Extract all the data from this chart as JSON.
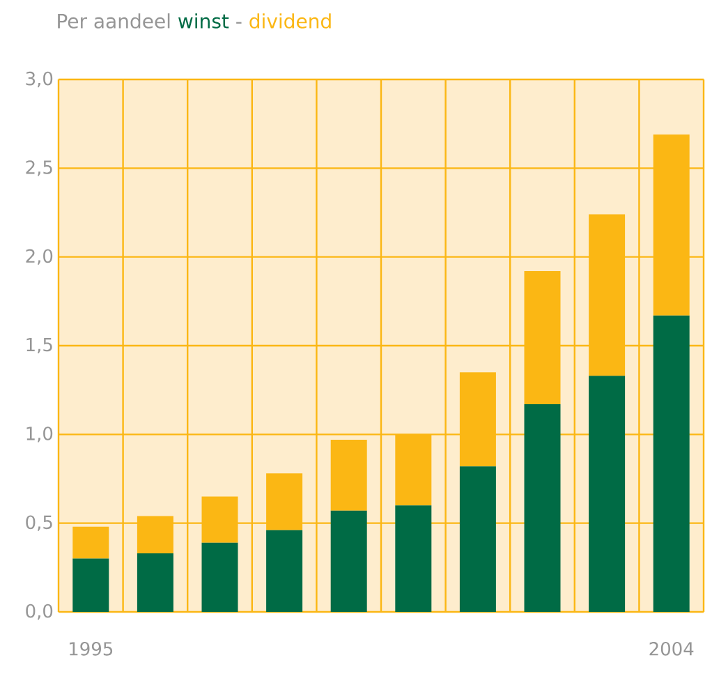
{
  "chart_data": {
    "type": "bar",
    "stacked": true,
    "title": "Per aandeel",
    "annotations": [
      "-"
    ],
    "categories": [
      "1995",
      null,
      null,
      null,
      null,
      null,
      null,
      null,
      null,
      "2004"
    ],
    "series": [
      {
        "name": "winst",
        "color": "#006b45",
        "values": [
          0.3,
          0.33,
          0.39,
          0.46,
          0.57,
          0.6,
          0.82,
          1.17,
          1.33,
          1.67
        ]
      },
      {
        "name": "dividend",
        "color": "#fbb714",
        "values": [
          0.18,
          0.21,
          0.26,
          0.32,
          0.4,
          0.4,
          0.53,
          0.75,
          0.91,
          1.02
        ]
      }
    ],
    "ylim": [
      0,
      3
    ],
    "yticks": [
      {
        "value": 0,
        "label": "0,0"
      },
      {
        "value": 0.5,
        "label": "0,5"
      },
      {
        "value": 1,
        "label": "1,0"
      },
      {
        "value": 1.5,
        "label": "1,5"
      },
      {
        "value": 2,
        "label": "2,0"
      },
      {
        "value": 2.5,
        "label": "2,5"
      },
      {
        "value": 3,
        "label": "3,0"
      }
    ],
    "grid": true,
    "legend": "top left"
  }
}
